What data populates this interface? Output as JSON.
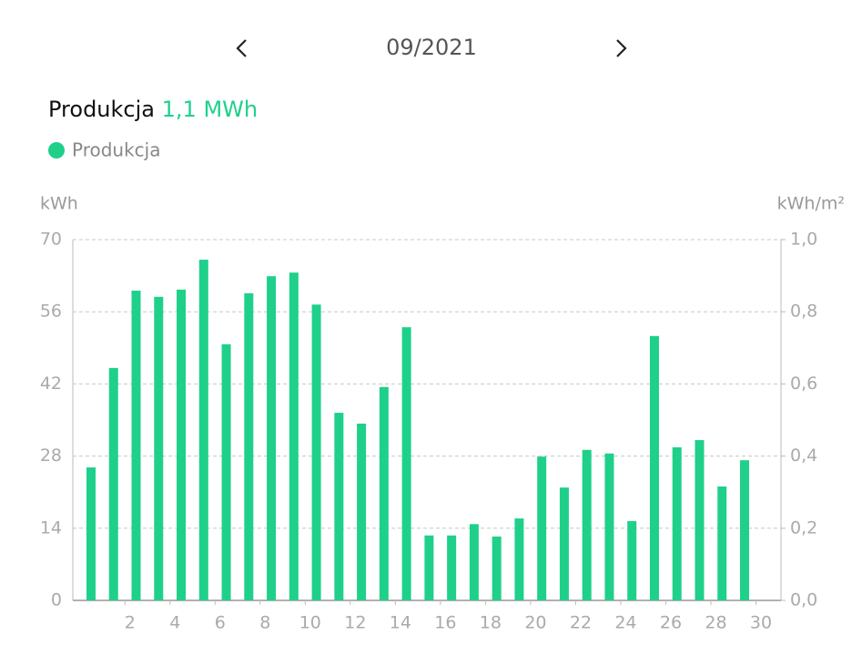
{
  "header": {
    "period": "09/2021"
  },
  "chart_data": {
    "type": "bar",
    "summary_label": "Produkcja",
    "summary_value": "1,1 MWh",
    "ylabel": "kWh",
    "y2label": "kWh/m²",
    "categories": [
      null,
      2,
      null,
      4,
      null,
      6,
      null,
      8,
      null,
      10,
      null,
      12,
      null,
      14,
      null,
      16,
      null,
      18,
      null,
      20,
      null,
      22,
      null,
      24,
      null,
      26,
      null,
      28,
      null,
      30
    ],
    "series": [
      {
        "name": "Produkcja",
        "color": "#1fd08b",
        "values": [
          25.8,
          45.1,
          60.1,
          58.9,
          60.3,
          66.1,
          49.7,
          59.6,
          62.9,
          63.6,
          57.4,
          36.4,
          34.3,
          41.4,
          53.0,
          12.6,
          12.6,
          14.8,
          12.4,
          15.9,
          27.9,
          21.9,
          29.2,
          28.5,
          15.4,
          51.3,
          29.7,
          31.1,
          22.1,
          27.2
        ]
      }
    ],
    "ylim": [
      0,
      70
    ],
    "yticks": [
      0,
      14,
      28,
      42,
      56,
      70
    ],
    "y2lim": [
      0,
      1.0
    ],
    "y2ticks": [
      {
        "value": 0,
        "label": "0,0"
      },
      {
        "value": 0.2,
        "label": "0,2"
      },
      {
        "value": 0.4,
        "label": "0,4"
      },
      {
        "value": 0.6,
        "label": "0,6"
      },
      {
        "value": 0.8,
        "label": "0,8"
      },
      {
        "value": 1.0,
        "label": "1,0"
      }
    ],
    "grid": true
  }
}
